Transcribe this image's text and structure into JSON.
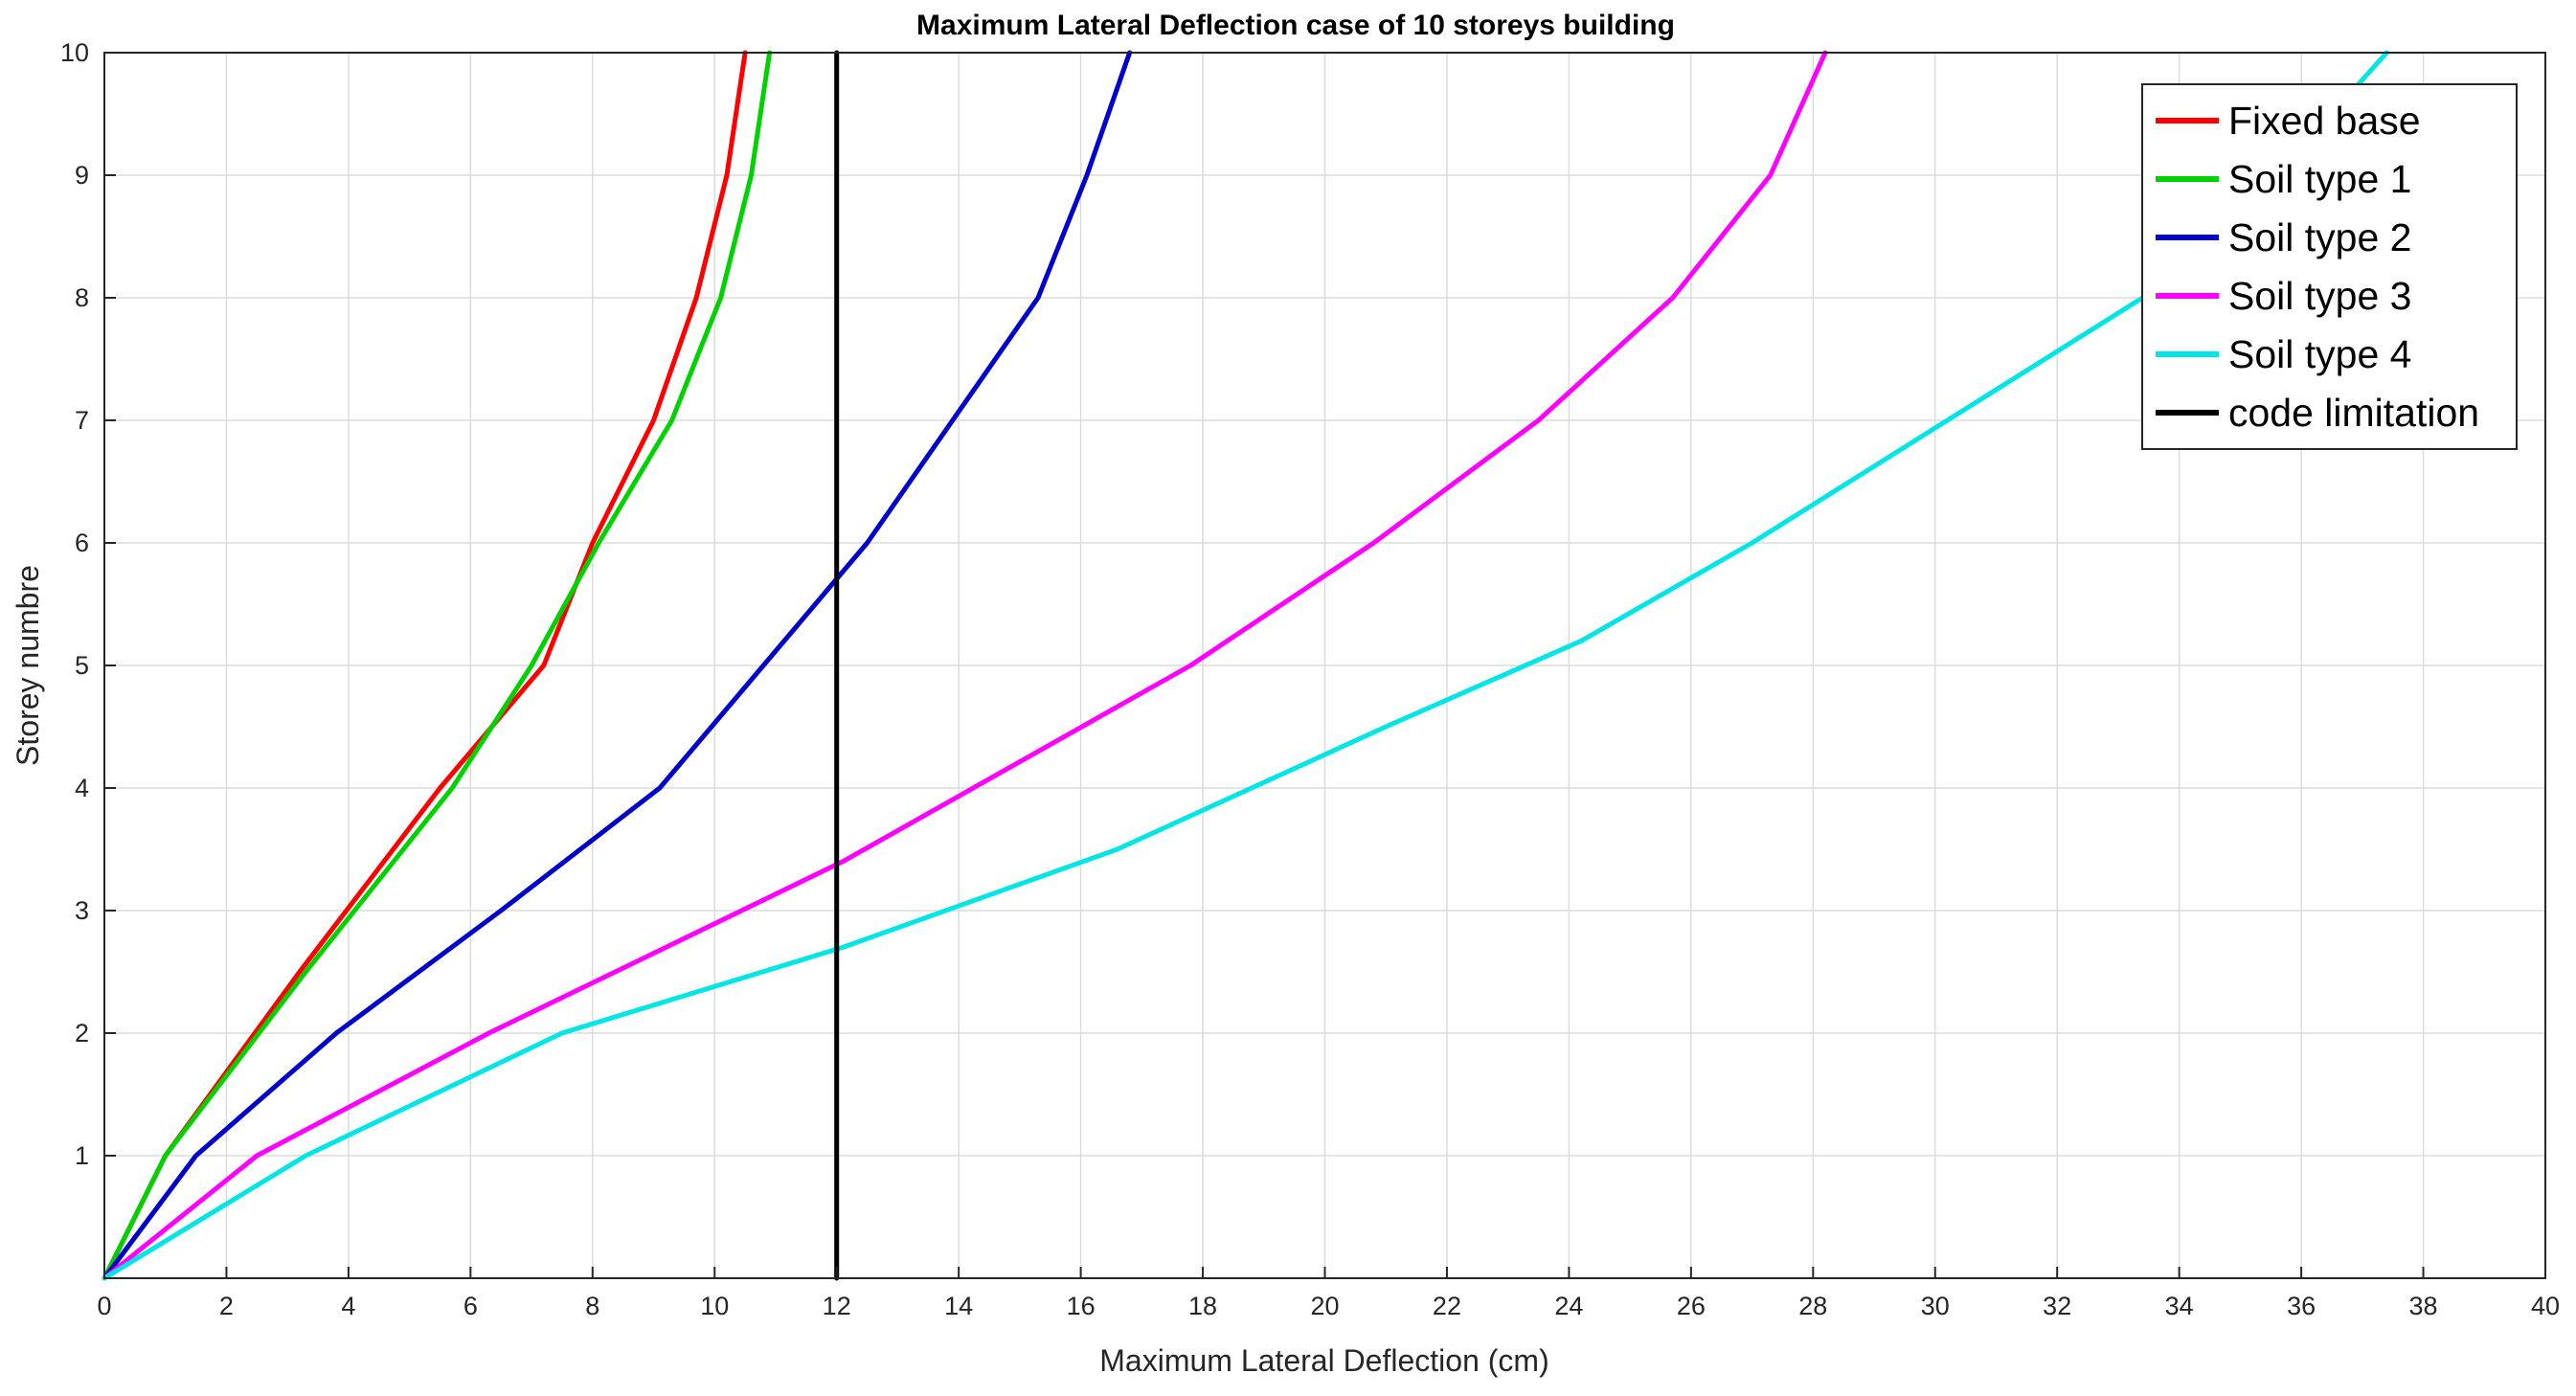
{
  "chart_data": {
    "type": "line",
    "title": "Maximum Lateral Deflection case of 10 storeys building",
    "xlabel": "Maximum Lateral Deflection (cm)",
    "ylabel": "Storey numbre",
    "xlim": [
      0,
      40
    ],
    "ylim": [
      0,
      10
    ],
    "xticks": [
      0,
      2,
      4,
      6,
      8,
      10,
      12,
      14,
      16,
      18,
      20,
      22,
      24,
      26,
      28,
      30,
      32,
      34,
      36,
      38,
      40
    ],
    "yticks": [
      1,
      2,
      3,
      4,
      5,
      6,
      7,
      8,
      9,
      10
    ],
    "grid": true,
    "legend_position": "top-right",
    "series": [
      {
        "name": "Fixed base",
        "color": "#ff0000",
        "x": [
          0,
          1.0,
          3.2,
          5.5,
          7.2,
          8.0,
          9.0,
          9.7,
          10.2,
          10.5
        ],
        "y": [
          0,
          1,
          2.5,
          4,
          5,
          6,
          7,
          8,
          9,
          10
        ]
      },
      {
        "name": "Soil type 1",
        "color": "#00d200",
        "x": [
          0,
          1.0,
          3.3,
          5.7,
          7.0,
          8.1,
          9.3,
          10.1,
          10.6,
          10.9
        ],
        "y": [
          0,
          1,
          2.5,
          4,
          5,
          6,
          7,
          8,
          9,
          10
        ]
      },
      {
        "name": "Soil type 2",
        "color": "#0000cc",
        "x": [
          0,
          1.5,
          3.8,
          6.5,
          9.1,
          10.8,
          12.5,
          13.9,
          15.3,
          16.1,
          16.8
        ],
        "y": [
          0,
          1,
          2,
          3,
          4,
          5,
          6,
          7,
          8,
          9,
          10
        ]
      },
      {
        "name": "Soil type 3",
        "color": "#ff00ff",
        "x": [
          0,
          2.5,
          6.3,
          12.1,
          17.8,
          20.8,
          23.5,
          25.7,
          27.3,
          28.2
        ],
        "y": [
          0,
          1,
          2,
          3.4,
          5,
          6,
          7,
          8,
          9,
          10
        ]
      },
      {
        "name": "Soil type 4",
        "color": "#00e5e5",
        "x": [
          0,
          3.3,
          7.5,
          12.1,
          16.6,
          21.0,
          24.2,
          27.0,
          30.2,
          33.4,
          35.6,
          37.4
        ],
        "y": [
          0,
          1,
          2,
          2.7,
          3.5,
          4.5,
          5.2,
          6,
          7,
          8,
          9,
          10
        ]
      },
      {
        "name": "code limitation",
        "color": "#000000",
        "x": [
          12,
          12
        ],
        "y": [
          0,
          10
        ]
      }
    ]
  }
}
